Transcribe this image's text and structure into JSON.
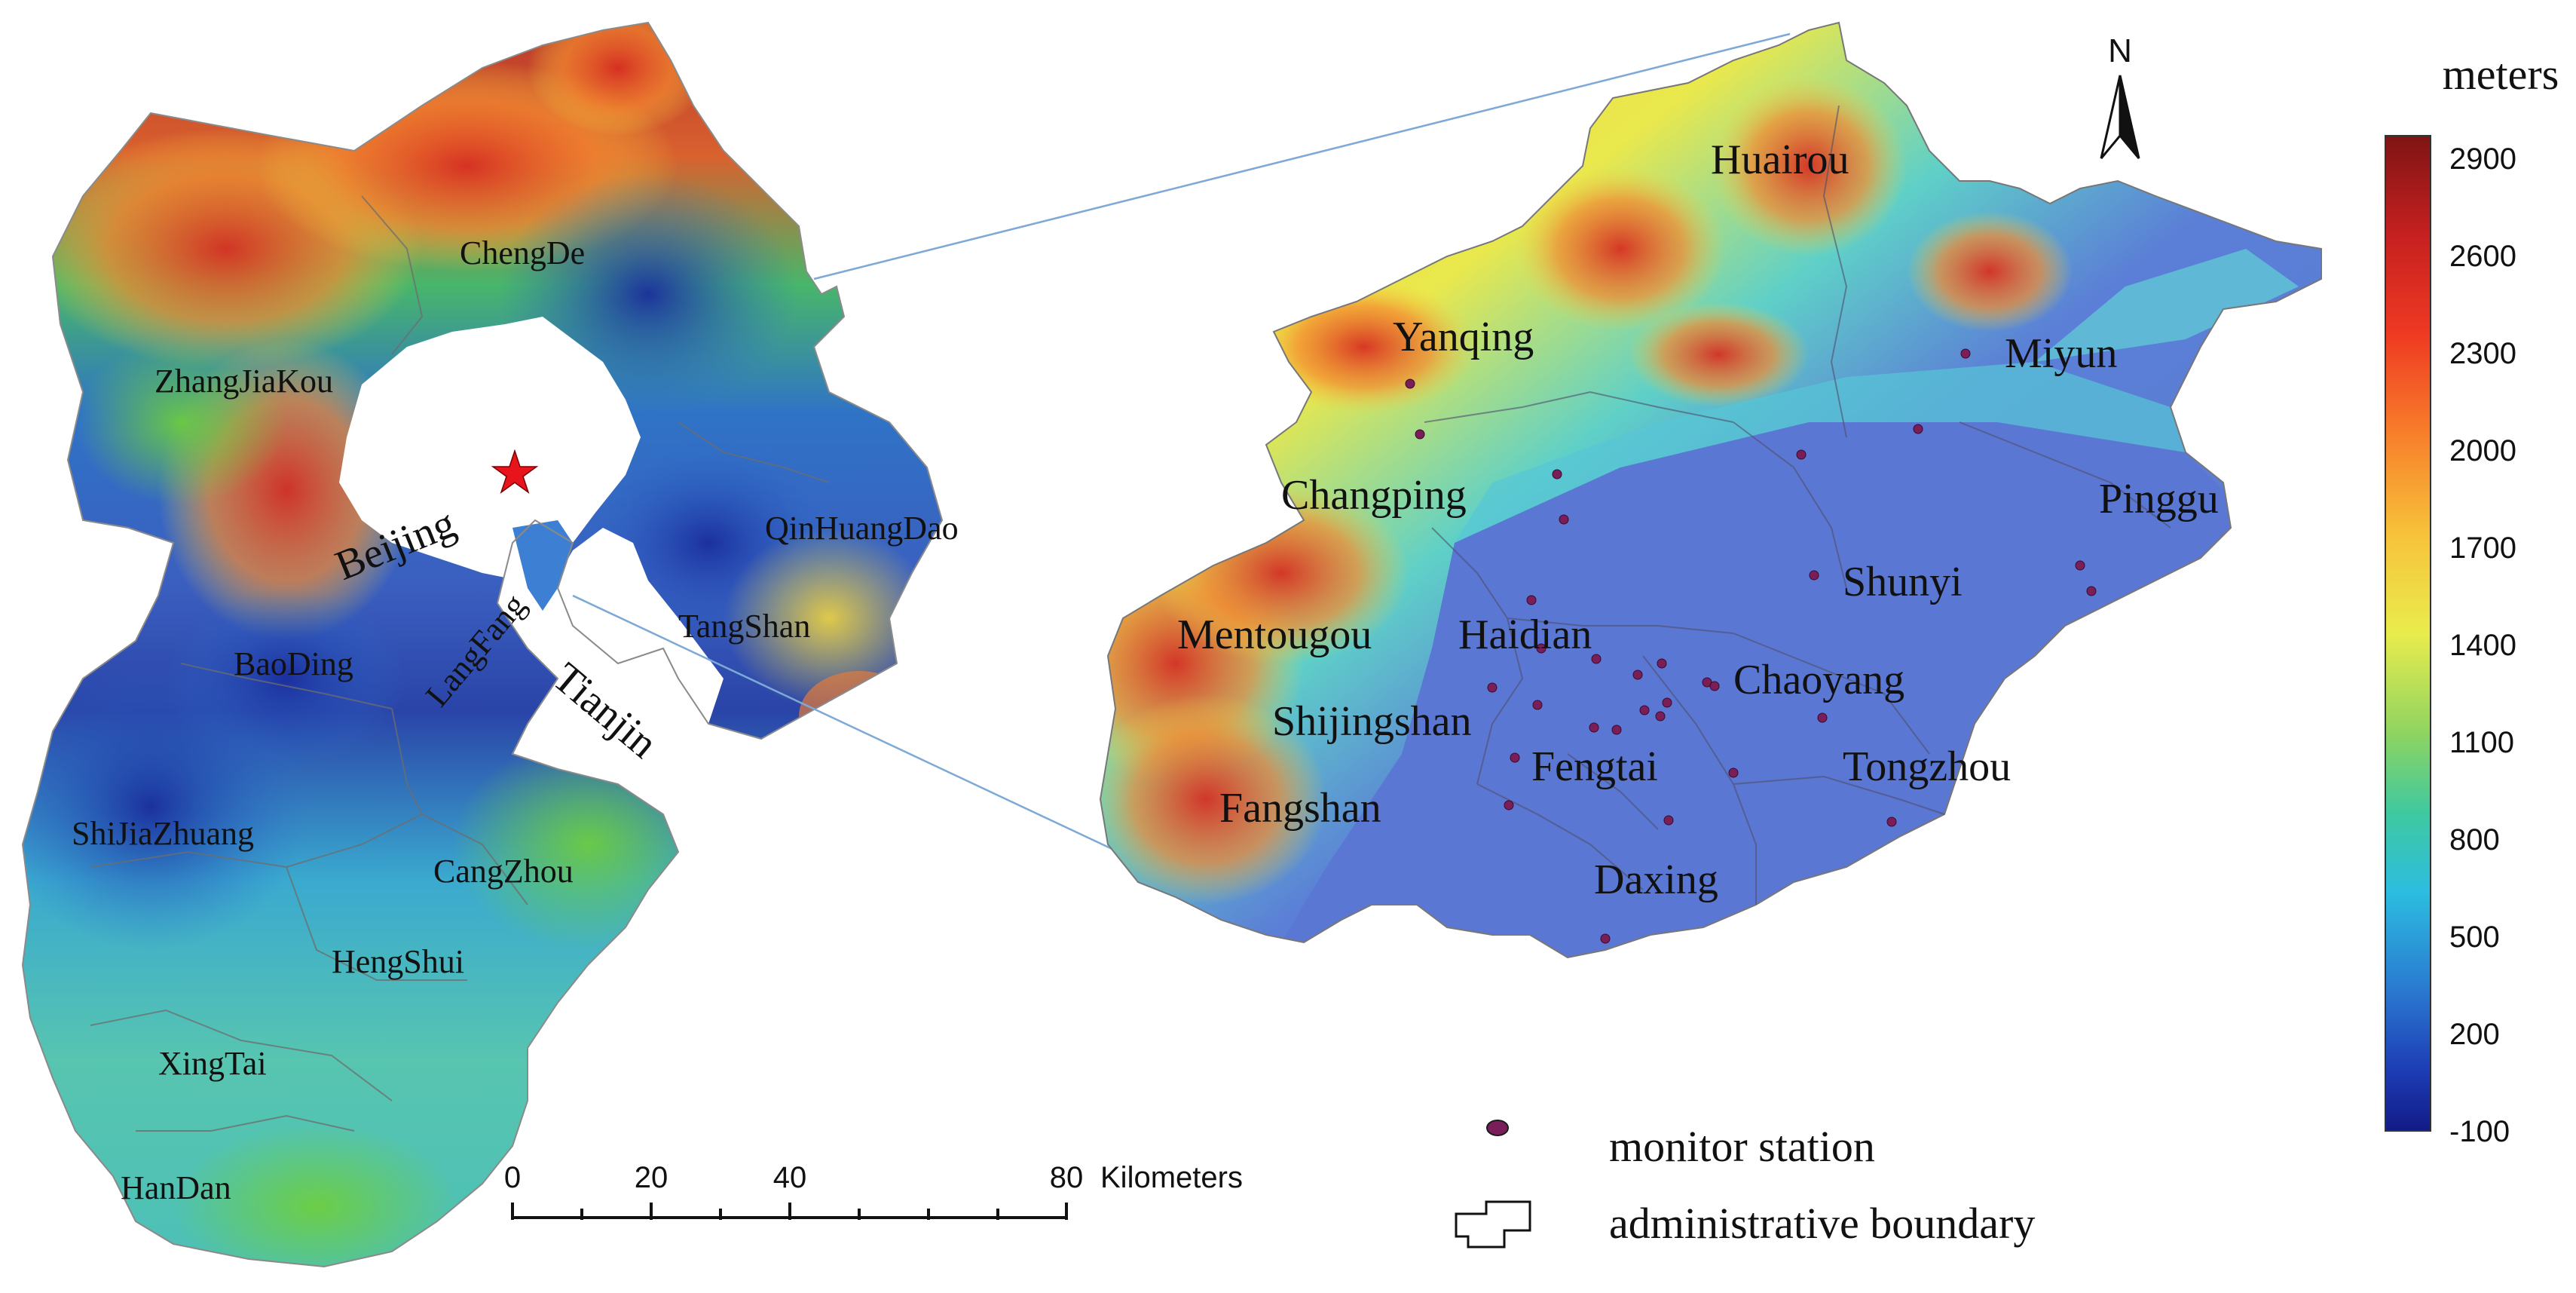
{
  "colorbar": {
    "title": "meters",
    "ticks": [
      "2900",
      "2600",
      "2300",
      "2000",
      "1700",
      "1400",
      "1100",
      "800",
      "500",
      "200",
      "-100"
    ],
    "colors": [
      "#8b1a1a",
      "#d7261e",
      "#f46d2b",
      "#f9b233",
      "#f3e64a",
      "#9fd65a",
      "#4fcb8e",
      "#2fc0d8",
      "#2e7fd1",
      "#1f3fb8",
      "#131f8c"
    ]
  },
  "left_map": {
    "regions": [
      "ChengDe",
      "ZhangJiaKou",
      "Beijing",
      "QinHuangDao",
      "TangShan",
      "LangFang",
      "Tianjin",
      "BaoDing",
      "ShiJiaZhuang",
      "CangZhou",
      "HengShui",
      "XingTai",
      "HanDan"
    ]
  },
  "right_map": {
    "districts": [
      "Huairou",
      "Yanqing",
      "Miyun",
      "Changping",
      "Pinggu",
      "Shunyi",
      "Mentougou",
      "Haidian",
      "Chaoyang",
      "Shijingshan",
      "Fengtai",
      "Tongzhou",
      "Fangshan",
      "Daxing"
    ]
  },
  "north_arrow": {
    "label": "N"
  },
  "scale_bar": {
    "ticks": [
      "0",
      "20",
      "40",
      "80"
    ],
    "unit": "Kilometers"
  },
  "legend": [
    {
      "symbol": "station",
      "label": "monitor station"
    },
    {
      "symbol": "boundary",
      "label": "administrative boundary"
    }
  ]
}
